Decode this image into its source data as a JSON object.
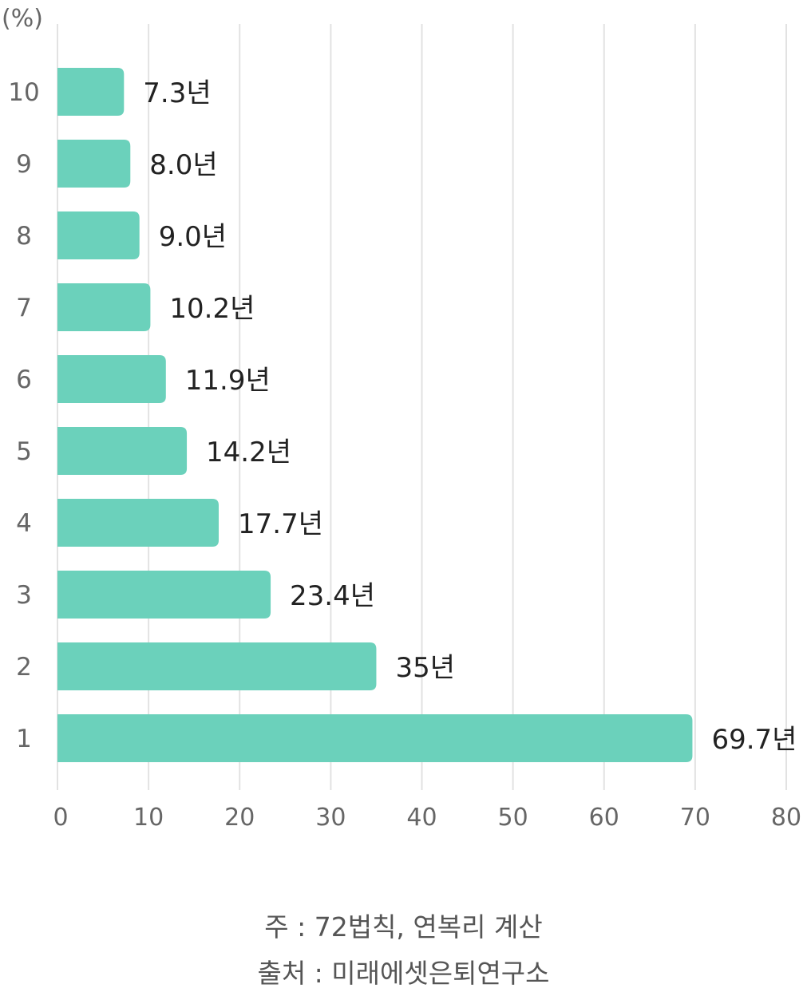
{
  "chart_data": {
    "type": "bar",
    "orientation": "horizontal",
    "ylabel": "(%)",
    "categories": [
      "10",
      "9",
      "8",
      "7",
      "6",
      "5",
      "4",
      "3",
      "2",
      "1"
    ],
    "values": [
      7.3,
      8.0,
      9.0,
      10.2,
      11.9,
      14.2,
      17.7,
      23.4,
      35,
      69.7
    ],
    "data_labels": [
      "7.3년",
      "8.0년",
      "9.0년",
      "10.2년",
      "11.9년",
      "14.2년",
      "17.7년",
      "23.4년",
      "35년",
      "69.7년"
    ],
    "xlim": [
      0,
      80
    ],
    "xticks": [
      "0",
      "10",
      "20",
      "30",
      "40",
      "50",
      "60",
      "70",
      "80"
    ],
    "grid": true,
    "bar_color": "#6BD1BB"
  },
  "footer": {
    "note": "주 : 72법칙, 연복리 계산",
    "source": "출처 : 미래에셋은퇴연구소"
  }
}
